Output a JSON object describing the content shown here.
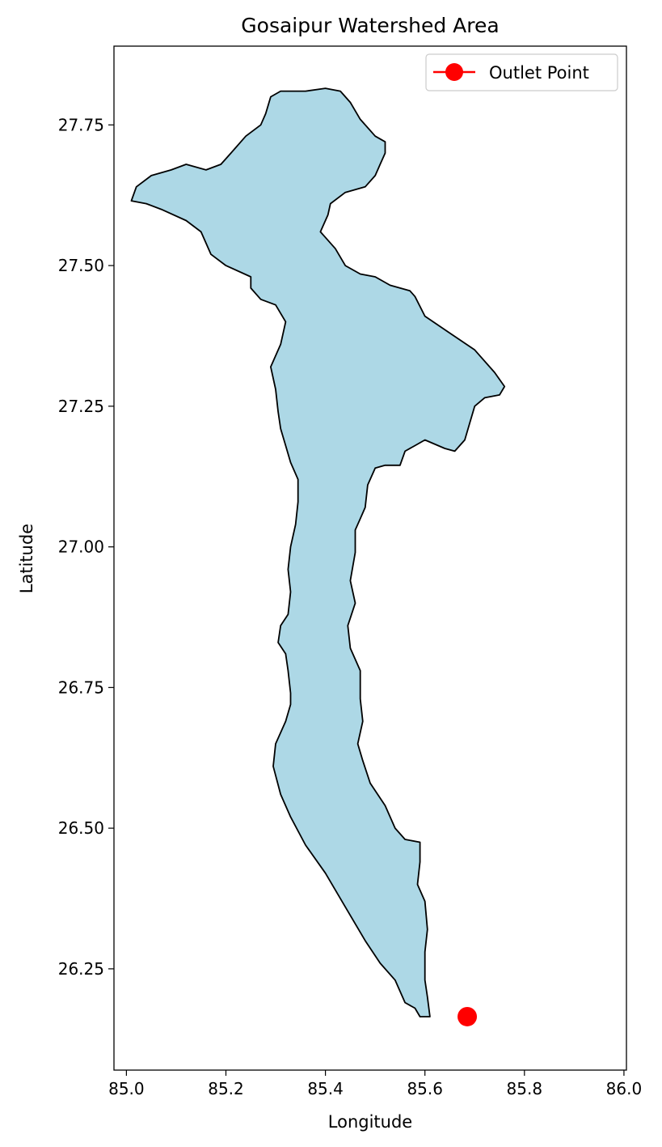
{
  "chart_data": {
    "type": "map",
    "title": "Gosaipur Watershed Area",
    "xlabel": "Longitude",
    "ylabel": "Latitude",
    "xlim": [
      84.975,
      86.005
    ],
    "ylim": [
      26.07,
      27.89
    ],
    "x_ticks": [
      85.0,
      85.2,
      85.4,
      85.6,
      85.8,
      86.0
    ],
    "x_tick_labels": [
      "85.0",
      "85.2",
      "85.4",
      "85.6",
      "85.8",
      "86.0"
    ],
    "y_ticks": [
      26.25,
      26.5,
      26.75,
      27.0,
      27.25,
      27.5,
      27.75
    ],
    "y_tick_labels": [
      "26.25",
      "26.50",
      "26.75",
      "27.00",
      "27.25",
      "27.50",
      "27.75"
    ],
    "grid": false,
    "legend_position": "top-right",
    "colors": {
      "watershed_fill": "#add8e6",
      "watershed_edge": "#000000",
      "outlet": "#ff0000"
    },
    "watershed_boundary": [
      [
        85.29,
        27.8
      ],
      [
        85.31,
        27.81
      ],
      [
        85.36,
        27.81
      ],
      [
        85.4,
        27.815
      ],
      [
        85.43,
        27.81
      ],
      [
        85.45,
        27.79
      ],
      [
        85.47,
        27.76
      ],
      [
        85.5,
        27.73
      ],
      [
        85.52,
        27.72
      ],
      [
        85.52,
        27.7
      ],
      [
        85.51,
        27.68
      ],
      [
        85.5,
        27.66
      ],
      [
        85.48,
        27.64
      ],
      [
        85.44,
        27.63
      ],
      [
        85.41,
        27.61
      ],
      [
        85.405,
        27.59
      ],
      [
        85.39,
        27.56
      ],
      [
        85.4,
        27.55
      ],
      [
        85.42,
        27.53
      ],
      [
        85.44,
        27.5
      ],
      [
        85.47,
        27.485
      ],
      [
        85.5,
        27.48
      ],
      [
        85.53,
        27.465
      ],
      [
        85.57,
        27.455
      ],
      [
        85.58,
        27.445
      ],
      [
        85.6,
        27.41
      ],
      [
        85.65,
        27.38
      ],
      [
        85.7,
        27.35
      ],
      [
        85.74,
        27.31
      ],
      [
        85.76,
        27.285
      ],
      [
        85.75,
        27.27
      ],
      [
        85.72,
        27.265
      ],
      [
        85.7,
        27.25
      ],
      [
        85.69,
        27.22
      ],
      [
        85.68,
        27.19
      ],
      [
        85.66,
        27.17
      ],
      [
        85.64,
        27.175
      ],
      [
        85.6,
        27.19
      ],
      [
        85.58,
        27.18
      ],
      [
        85.56,
        27.17
      ],
      [
        85.55,
        27.145
      ],
      [
        85.52,
        27.145
      ],
      [
        85.5,
        27.14
      ],
      [
        85.485,
        27.11
      ],
      [
        85.48,
        27.07
      ],
      [
        85.47,
        27.05
      ],
      [
        85.46,
        27.03
      ],
      [
        85.46,
        26.99
      ],
      [
        85.45,
        26.94
      ],
      [
        85.46,
        26.9
      ],
      [
        85.445,
        26.86
      ],
      [
        85.45,
        26.82
      ],
      [
        85.47,
        26.78
      ],
      [
        85.47,
        26.73
      ],
      [
        85.475,
        26.69
      ],
      [
        85.465,
        26.65
      ],
      [
        85.475,
        26.62
      ],
      [
        85.49,
        26.58
      ],
      [
        85.52,
        26.54
      ],
      [
        85.54,
        26.5
      ],
      [
        85.56,
        26.48
      ],
      [
        85.59,
        26.475
      ],
      [
        85.59,
        26.44
      ],
      [
        85.585,
        26.4
      ],
      [
        85.6,
        26.37
      ],
      [
        85.605,
        26.32
      ],
      [
        85.6,
        26.28
      ],
      [
        85.6,
        26.23
      ],
      [
        85.605,
        26.2
      ],
      [
        85.61,
        26.165
      ],
      [
        85.59,
        26.165
      ],
      [
        85.58,
        26.18
      ],
      [
        85.56,
        26.19
      ],
      [
        85.54,
        26.23
      ],
      [
        85.51,
        26.26
      ],
      [
        85.48,
        26.3
      ],
      [
        85.44,
        26.36
      ],
      [
        85.4,
        26.42
      ],
      [
        85.36,
        26.47
      ],
      [
        85.33,
        26.52
      ],
      [
        85.31,
        26.56
      ],
      [
        85.295,
        26.61
      ],
      [
        85.3,
        26.65
      ],
      [
        85.32,
        26.69
      ],
      [
        85.33,
        26.72
      ],
      [
        85.33,
        26.74
      ],
      [
        85.325,
        26.78
      ],
      [
        85.32,
        26.81
      ],
      [
        85.305,
        26.83
      ],
      [
        85.31,
        26.86
      ],
      [
        85.325,
        26.88
      ],
      [
        85.33,
        26.92
      ],
      [
        85.325,
        26.96
      ],
      [
        85.33,
        27.0
      ],
      [
        85.34,
        27.04
      ],
      [
        85.345,
        27.08
      ],
      [
        85.345,
        27.12
      ],
      [
        85.33,
        27.15
      ],
      [
        85.32,
        27.18
      ],
      [
        85.31,
        27.21
      ],
      [
        85.305,
        27.24
      ],
      [
        85.3,
        27.28
      ],
      [
        85.29,
        27.32
      ],
      [
        85.31,
        27.36
      ],
      [
        85.32,
        27.4
      ],
      [
        85.3,
        27.43
      ],
      [
        85.27,
        27.44
      ],
      [
        85.25,
        27.46
      ],
      [
        85.25,
        27.48
      ],
      [
        85.2,
        27.5
      ],
      [
        85.17,
        27.52
      ],
      [
        85.15,
        27.56
      ],
      [
        85.12,
        27.58
      ],
      [
        85.07,
        27.6
      ],
      [
        85.04,
        27.61
      ],
      [
        85.01,
        27.615
      ],
      [
        85.02,
        27.64
      ],
      [
        85.05,
        27.66
      ],
      [
        85.09,
        27.67
      ],
      [
        85.12,
        27.68
      ],
      [
        85.16,
        27.67
      ],
      [
        85.19,
        27.68
      ],
      [
        85.21,
        27.7
      ],
      [
        85.24,
        27.73
      ],
      [
        85.27,
        27.75
      ],
      [
        85.28,
        27.77
      ]
    ],
    "outlet_point": {
      "lon": 85.685,
      "lat": 26.165
    },
    "legend_label": "Outlet Point"
  }
}
